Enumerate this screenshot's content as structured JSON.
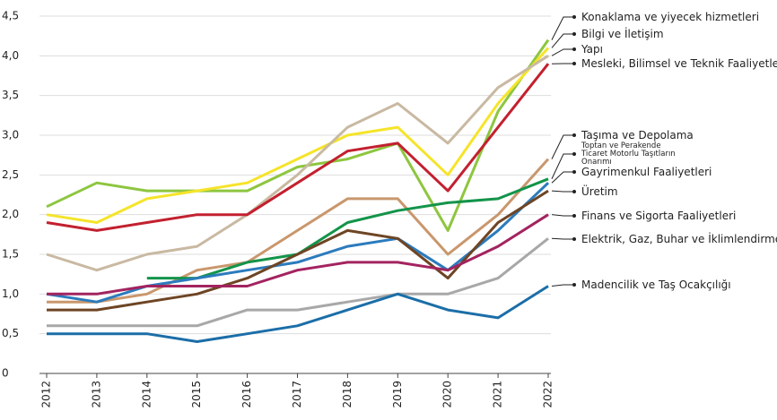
{
  "chart_data": {
    "type": "line",
    "categories": [
      "2012",
      "2013",
      "2014",
      "2015",
      "2016",
      "2017",
      "2018",
      "2019",
      "2020",
      "2021",
      "2022"
    ],
    "ylim": [
      0,
      4.5
    ],
    "yticks": [
      0,
      {
        "value": 0.5,
        "label": "0,5"
      },
      {
        "value": 1,
        "label": "1,0"
      },
      {
        "value": 1.5,
        "label": "1,5"
      },
      {
        "value": 2,
        "label": "2,0"
      },
      {
        "value": 2.5,
        "label": "2,5"
      },
      {
        "value": 3,
        "label": "3,0"
      },
      {
        "value": 3.5,
        "label": "3,5"
      },
      {
        "value": 4,
        "label": "4,0"
      },
      {
        "value": 4.5,
        "label": "4,5"
      }
    ],
    "grid": true,
    "series": [
      {
        "name": "Konaklama ve yiyecek hizmetleri",
        "color": "#8dc63f",
        "values": [
          2.1,
          2.4,
          2.3,
          2.3,
          2.3,
          2.6,
          2.7,
          2.9,
          1.8,
          3.3,
          4.2
        ]
      },
      {
        "name": "Bilgi ve İletişim",
        "color": "#f5e42a",
        "values": [
          2.0,
          1.9,
          2.2,
          2.3,
          2.4,
          2.7,
          3.0,
          3.1,
          2.5,
          3.4,
          4.1
        ]
      },
      {
        "name": "Yapı",
        "color": "#c9b9a2",
        "values": [
          1.5,
          1.3,
          1.5,
          1.6,
          2.0,
          2.5,
          3.1,
          3.4,
          2.9,
          3.6,
          4.0
        ]
      },
      {
        "name": "Mesleki, Bilimsel ve Teknik Faaliyetler",
        "color": "#c3202f",
        "values": [
          1.9,
          1.8,
          1.9,
          2.0,
          2.0,
          2.4,
          2.8,
          2.9,
          2.3,
          3.1,
          3.9
        ]
      },
      {
        "name": "Taşıma ve Depolama",
        "color": "#c9976d",
        "values": [
          0.9,
          0.9,
          1.0,
          1.3,
          1.4,
          1.8,
          2.2,
          2.2,
          1.5,
          2.0,
          2.7
        ]
      },
      {
        "name": "Toptan ve Perakende Ticaret Motorlu Taşıtların Onarımı",
        "color": "#13944a",
        "values": [
          null,
          null,
          1.2,
          1.2,
          1.4,
          1.5,
          1.9,
          2.05,
          2.15,
          2.2,
          2.45
        ]
      },
      {
        "name": "Gayrimenkul Faaliyetleri",
        "color": "#2b7bbd",
        "values": [
          1.0,
          0.9,
          1.1,
          1.2,
          1.3,
          1.4,
          1.6,
          1.7,
          1.3,
          1.8,
          2.4
        ]
      },
      {
        "name": "Üretim",
        "color": "#6e4524",
        "values": [
          0.8,
          0.8,
          0.9,
          1.0,
          1.2,
          1.5,
          1.8,
          1.7,
          1.2,
          1.9,
          2.3
        ]
      },
      {
        "name": "Finans ve Sigorta Faaliyetleri",
        "color": "#a3235f",
        "values": [
          1.0,
          1.0,
          1.1,
          1.1,
          1.1,
          1.3,
          1.4,
          1.4,
          1.3,
          1.6,
          2.0
        ]
      },
      {
        "name": "Elektrik, Gaz, Buhar ve İklimlendirme",
        "color": "#a8a8a8",
        "values": [
          0.6,
          0.6,
          0.6,
          0.6,
          0.8,
          0.8,
          0.9,
          1.0,
          1.0,
          1.2,
          1.7
        ]
      },
      {
        "name": "Madencilik ve Taş Ocakçılığı",
        "color": "#1b6ea8",
        "values": [
          0.5,
          0.5,
          0.5,
          0.4,
          0.5,
          0.6,
          0.8,
          1.0,
          0.8,
          0.7,
          1.1
        ]
      }
    ]
  }
}
